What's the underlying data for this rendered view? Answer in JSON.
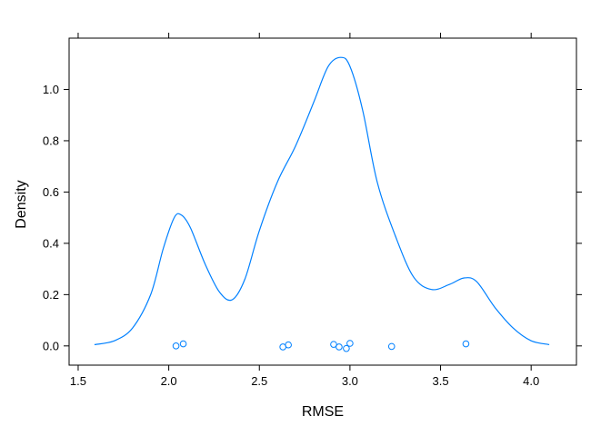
{
  "chart_data": {
    "type": "density",
    "xlabel": "RMSE",
    "ylabel": "Density",
    "xlim": [
      1.45,
      4.25
    ],
    "ylim": [
      -0.075,
      1.2
    ],
    "x_ticks": [
      1.5,
      2.0,
      2.5,
      3.0,
      3.5,
      4.0
    ],
    "x_tick_labels": [
      "1.5",
      "2.0",
      "2.5",
      "3.0",
      "3.5",
      "4.0"
    ],
    "y_ticks": [
      0.0,
      0.2,
      0.4,
      0.6,
      0.8,
      1.0
    ],
    "y_tick_labels": [
      "0.0",
      "0.2",
      "0.4",
      "0.6",
      "0.8",
      "1.0"
    ],
    "series_color": "#0080ff",
    "density_curve": [
      [
        1.59,
        0.005
      ],
      [
        1.7,
        0.02
      ],
      [
        1.8,
        0.07
      ],
      [
        1.9,
        0.2
      ],
      [
        1.97,
        0.38
      ],
      [
        2.03,
        0.5
      ],
      [
        2.07,
        0.51
      ],
      [
        2.12,
        0.46
      ],
      [
        2.2,
        0.32
      ],
      [
        2.28,
        0.21
      ],
      [
        2.35,
        0.18
      ],
      [
        2.42,
        0.26
      ],
      [
        2.5,
        0.45
      ],
      [
        2.6,
        0.64
      ],
      [
        2.7,
        0.78
      ],
      [
        2.8,
        0.95
      ],
      [
        2.88,
        1.09
      ],
      [
        2.95,
        1.125
      ],
      [
        3.0,
        1.09
      ],
      [
        3.07,
        0.92
      ],
      [
        3.15,
        0.64
      ],
      [
        3.25,
        0.43
      ],
      [
        3.35,
        0.27
      ],
      [
        3.45,
        0.22
      ],
      [
        3.55,
        0.24
      ],
      [
        3.63,
        0.265
      ],
      [
        3.7,
        0.25
      ],
      [
        3.8,
        0.15
      ],
      [
        3.9,
        0.07
      ],
      [
        4.0,
        0.02
      ],
      [
        4.1,
        0.005
      ]
    ],
    "rug_points": [
      [
        2.04,
        0.0
      ],
      [
        2.08,
        0.008
      ],
      [
        2.63,
        -0.004
      ],
      [
        2.66,
        0.004
      ],
      [
        2.91,
        0.006
      ],
      [
        2.94,
        -0.004
      ],
      [
        2.98,
        -0.01
      ],
      [
        3.0,
        0.01
      ],
      [
        3.23,
        -0.002
      ],
      [
        3.64,
        0.008
      ]
    ]
  }
}
